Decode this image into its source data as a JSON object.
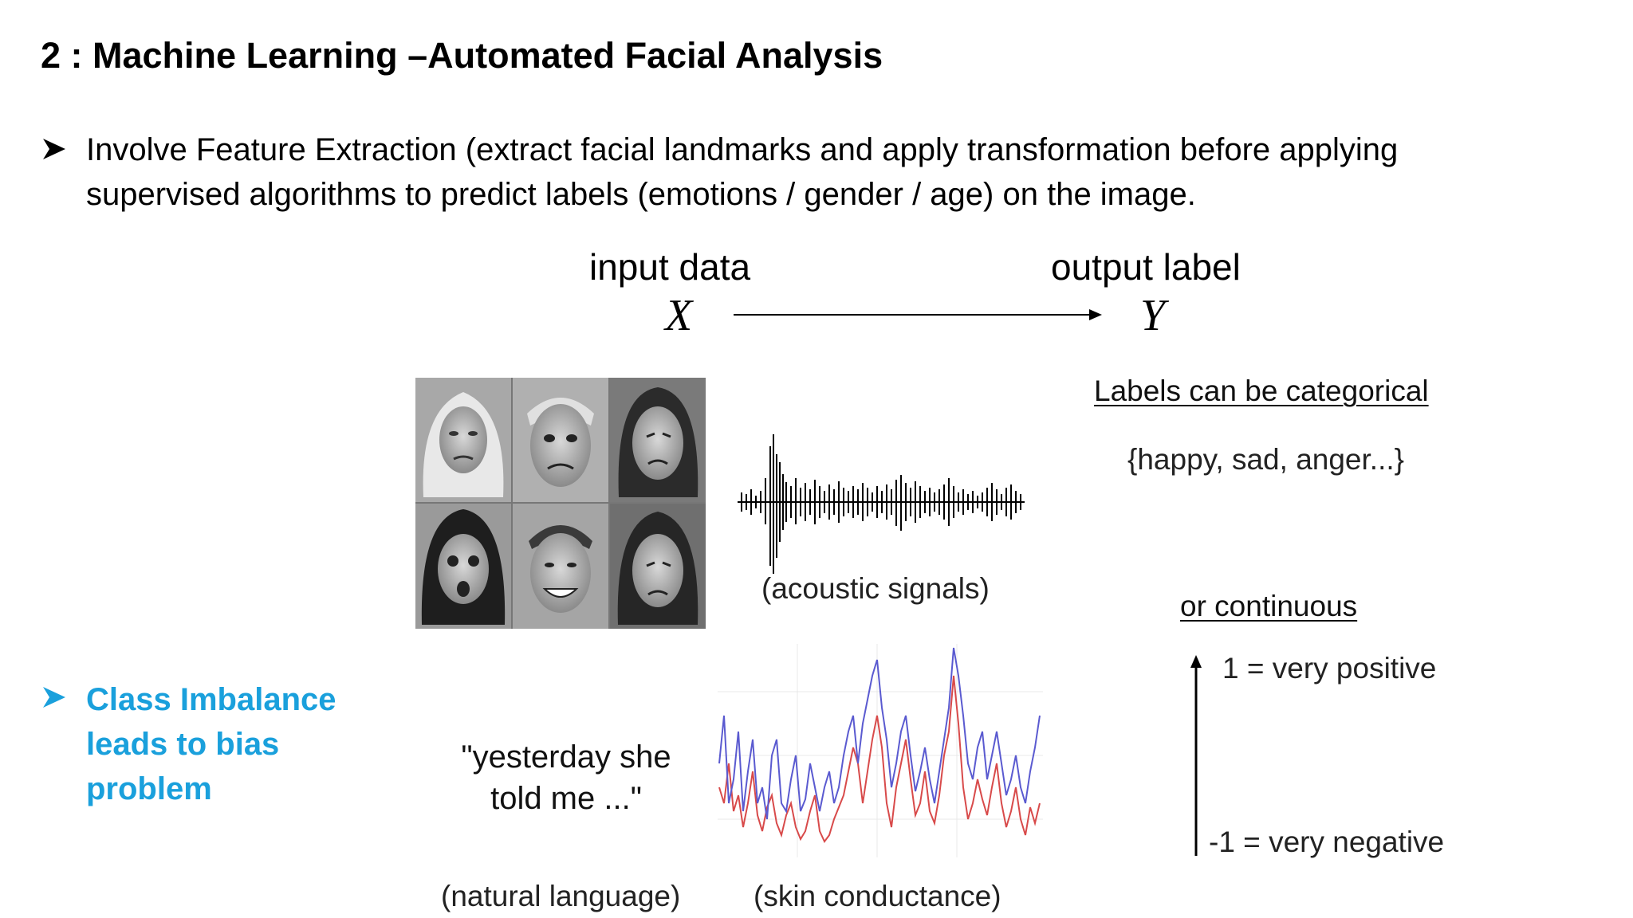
{
  "slide": {
    "title": "2 : Machine Learning –Automated Facial Analysis",
    "bullet1": {
      "line1": "Involve Feature Extraction (extract facial landmarks and apply transformation before applying",
      "line2": "supervised algorithms to predict labels (emotions / gender / age) on the image."
    },
    "bullet2": {
      "line1": "Class Imbalance",
      "line2": "leads to bias",
      "line3": "problem"
    },
    "bullet_icon": "arrow-bullet-icon",
    "accent_color": "#1aa0dc"
  },
  "figure": {
    "input_label": "input data",
    "input_var": "X",
    "output_label": "output label",
    "output_var": "Y",
    "faces_icon": "face-photo-grid",
    "acoustic_label": "(acoustic signals)",
    "quote_line1": "\"yesterday she",
    "quote_line2": "told me ...\"",
    "natural_language_label": "(natural language)",
    "skin_label": "(skin conductance)",
    "categorical_heading": "Labels can be categorical",
    "categorical_set": "{happy, sad, anger...}",
    "continuous_heading": "or continuous",
    "scale_top": "1 = very positive",
    "scale_bottom": "-1 = very negative",
    "skin_series_colors": [
      "#d84a4a",
      "#5a5ad0"
    ]
  }
}
